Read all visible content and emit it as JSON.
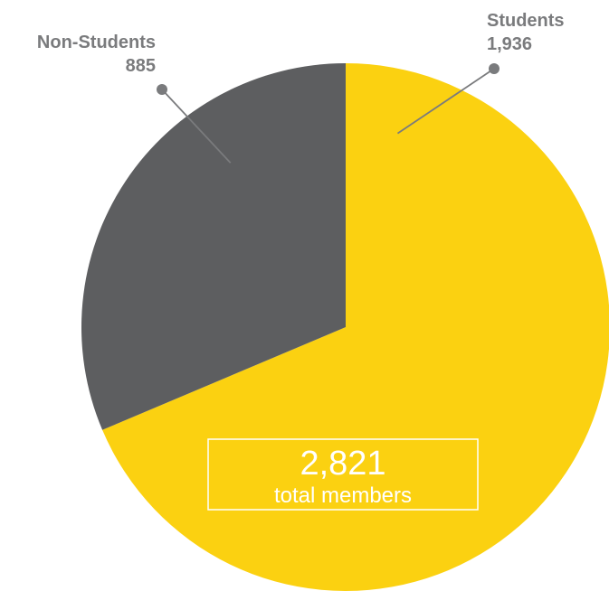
{
  "chart_data": {
    "type": "pie",
    "categories": [
      "Students",
      "Non-Students"
    ],
    "values": [
      1936,
      885
    ],
    "value_labels": [
      "1,936",
      "885"
    ],
    "colors": [
      "#fbd111",
      "#5d5e60"
    ],
    "label_color": "#7a7b7d",
    "total": {
      "value": "2,821",
      "caption": "total members"
    }
  }
}
